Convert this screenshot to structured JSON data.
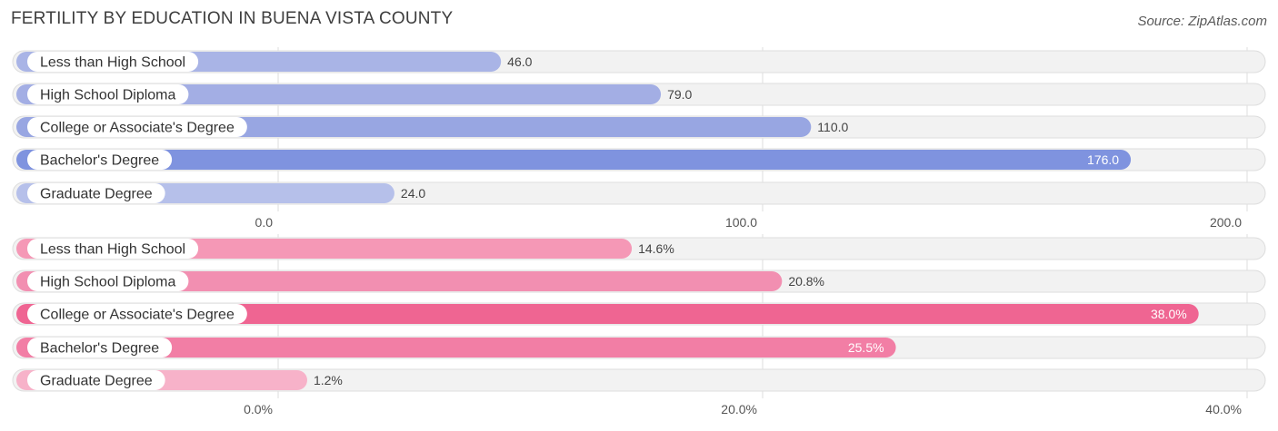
{
  "title": "FERTILITY BY EDUCATION IN BUENA VISTA COUNTY",
  "source": "Source: ZipAtlas.com",
  "chart_data": [
    {
      "type": "bar",
      "orientation": "horizontal",
      "categories": [
        "Less than High School",
        "High School Diploma",
        "College or Associate's Degree",
        "Bachelor's Degree",
        "Graduate Degree"
      ],
      "values": [
        46.0,
        79.0,
        110.0,
        176.0,
        24.0
      ],
      "value_labels": [
        "46.0",
        "79.0",
        "110.0",
        "176.0",
        "24.0"
      ],
      "xlim": [
        0,
        200
      ],
      "ticks": [
        0,
        100,
        200
      ],
      "tick_labels": [
        "0.0",
        "100.0",
        "200.0"
      ],
      "colors": [
        "#a9b4e6",
        "#a3aee4",
        "#98a6e2",
        "#7f93df",
        "#b6c0ea"
      ],
      "label_inside": [
        false,
        false,
        false,
        true,
        false
      ],
      "grid": true
    },
    {
      "type": "bar",
      "orientation": "horizontal",
      "categories": [
        "Less than High School",
        "High School Diploma",
        "College or Associate's Degree",
        "Bachelor's Degree",
        "Graduate Degree"
      ],
      "values": [
        14.6,
        20.8,
        38.0,
        25.5,
        1.2
      ],
      "value_labels": [
        "14.6%",
        "20.8%",
        "38.0%",
        "25.5%",
        "1.2%"
      ],
      "xlim": [
        0,
        40
      ],
      "ticks": [
        0,
        20,
        40
      ],
      "tick_labels": [
        "0.0%",
        "20.0%",
        "40.0%"
      ],
      "colors": [
        "#f598b6",
        "#f28fb1",
        "#ef6592",
        "#f27ea5",
        "#f7b2c9"
      ],
      "label_inside": [
        false,
        false,
        true,
        true,
        false
      ],
      "grid": true
    }
  ]
}
